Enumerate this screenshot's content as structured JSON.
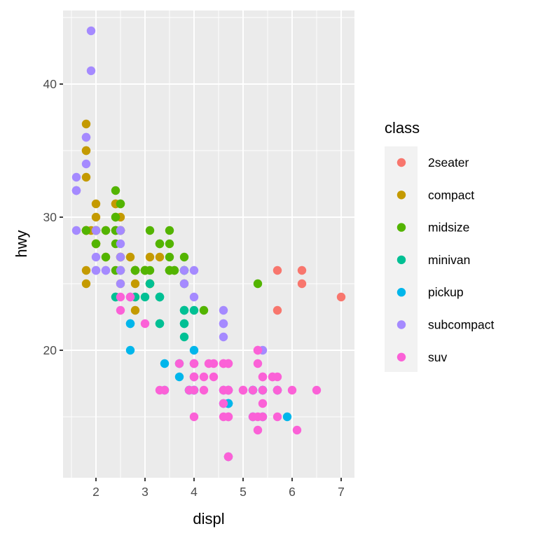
{
  "chart_data": {
    "type": "scatter",
    "title": "",
    "xlabel": "displ",
    "ylabel": "hwy",
    "xlim": [
      1.44,
      7.16
    ],
    "ylim": [
      10.4,
      45.6
    ],
    "x_ticks": [
      2,
      3,
      4,
      5,
      6,
      7
    ],
    "y_ticks": [
      20,
      30,
      40
    ],
    "grid": true,
    "legend": {
      "title": "class",
      "position": "right",
      "entries": [
        {
          "label": "2seater",
          "color": "#F8766D"
        },
        {
          "label": "compact",
          "color": "#C49A00"
        },
        {
          "label": "midsize",
          "color": "#53B400"
        },
        {
          "label": "minivan",
          "color": "#00C094"
        },
        {
          "label": "pickup",
          "color": "#00B6EB"
        },
        {
          "label": "subcompact",
          "color": "#A58AFF"
        },
        {
          "label": "suv",
          "color": "#FB61D7"
        }
      ]
    },
    "series": [
      {
        "name": "2seater",
        "points": [
          [
            5.7,
            26
          ],
          [
            5.7,
            23
          ],
          [
            6.2,
            26
          ],
          [
            6.2,
            25
          ],
          [
            7.0,
            24
          ]
        ]
      },
      {
        "name": "compact",
        "points": [
          [
            1.8,
            29
          ],
          [
            1.8,
            29
          ],
          [
            2.0,
            31
          ],
          [
            2.0,
            30
          ],
          [
            2.8,
            26
          ],
          [
            2.8,
            26
          ],
          [
            3.1,
            27
          ],
          [
            1.8,
            26
          ],
          [
            1.8,
            25
          ],
          [
            2.0,
            28
          ],
          [
            2.0,
            28
          ],
          [
            2.8,
            26
          ],
          [
            2.8,
            25
          ],
          [
            3.1,
            25
          ],
          [
            3.1,
            25
          ],
          [
            2.2,
            27
          ],
          [
            2.2,
            29
          ],
          [
            2.4,
            31
          ],
          [
            2.4,
            31
          ],
          [
            3.0,
            26
          ],
          [
            3.0,
            26
          ],
          [
            3.3,
            27
          ],
          [
            1.8,
            33
          ],
          [
            1.8,
            35
          ],
          [
            1.8,
            37
          ],
          [
            1.8,
            35
          ],
          [
            2.0,
            29
          ],
          [
            2.0,
            29
          ],
          [
            2.0,
            29
          ],
          [
            2.0,
            29
          ],
          [
            2.8,
            23
          ],
          [
            2.8,
            24
          ],
          [
            2.5,
            29
          ],
          [
            2.5,
            29
          ],
          [
            2.5,
            27
          ],
          [
            2.5,
            27
          ],
          [
            2.5,
            25
          ],
          [
            2.5,
            26
          ],
          [
            1.9,
            29
          ],
          [
            2.0,
            28
          ],
          [
            2.0,
            29
          ],
          [
            2.5,
            29
          ],
          [
            2.5,
            30
          ],
          [
            2.7,
            27
          ],
          [
            2.5,
            29
          ],
          [
            1.8,
            29
          ],
          [
            1.8,
            29
          ]
        ]
      },
      {
        "name": "midsize",
        "points": [
          [
            2.8,
            26
          ],
          [
            3.1,
            26
          ],
          [
            4.2,
            23
          ],
          [
            2.4,
            30
          ],
          [
            2.4,
            32
          ],
          [
            3.1,
            29
          ],
          [
            3.5,
            26
          ],
          [
            3.6,
            26
          ],
          [
            2.4,
            30
          ],
          [
            3.0,
            26
          ],
          [
            3.3,
            28
          ],
          [
            3.3,
            28
          ],
          [
            2.5,
            31
          ],
          [
            2.5,
            31
          ],
          [
            3.5,
            27
          ],
          [
            3.5,
            26
          ],
          [
            3.0,
            26
          ],
          [
            3.5,
            26
          ],
          [
            2.4,
            29
          ],
          [
            2.4,
            29
          ],
          [
            2.4,
            28
          ],
          [
            2.4,
            29
          ],
          [
            3.5,
            28
          ],
          [
            3.5,
            29
          ],
          [
            5.3,
            25
          ],
          [
            1.8,
            29
          ],
          [
            1.8,
            29
          ],
          [
            2.0,
            28
          ],
          [
            2.0,
            29
          ],
          [
            2.8,
            26
          ],
          [
            2.8,
            26
          ],
          [
            3.6,
            26
          ],
          [
            3.8,
            26
          ],
          [
            2.2,
            27
          ],
          [
            2.2,
            29
          ],
          [
            2.4,
            26
          ],
          [
            3.0,
            26
          ],
          [
            3.5,
            26
          ],
          [
            2.5,
            26
          ],
          [
            2.5,
            29
          ],
          [
            2.8,
            26
          ],
          [
            3.1,
            25
          ],
          [
            3.8,
            25
          ],
          [
            3.8,
            27
          ]
        ]
      },
      {
        "name": "minivan",
        "points": [
          [
            2.4,
            24
          ],
          [
            3.0,
            24
          ],
          [
            3.3,
            22
          ],
          [
            3.3,
            22
          ],
          [
            3.3,
            24
          ],
          [
            3.3,
            24
          ],
          [
            3.3,
            24
          ],
          [
            3.8,
            22
          ],
          [
            3.8,
            21
          ],
          [
            3.8,
            23
          ],
          [
            3.8,
            23
          ],
          [
            4.0,
            23
          ],
          [
            2.4,
            24
          ],
          [
            2.8,
            24
          ],
          [
            3.1,
            25
          ],
          [
            3.8,
            26
          ],
          [
            3.8,
            22
          ]
        ]
      },
      {
        "name": "pickup",
        "points": [
          [
            3.7,
            18
          ],
          [
            3.7,
            19
          ],
          [
            3.9,
            17
          ],
          [
            3.9,
            17
          ],
          [
            4.7,
            16
          ],
          [
            4.7,
            16
          ],
          [
            4.7,
            12
          ],
          [
            5.2,
            17
          ],
          [
            5.2,
            17
          ],
          [
            5.7,
            17
          ],
          [
            5.9,
            15
          ],
          [
            4.7,
            17
          ],
          [
            4.7,
            16
          ],
          [
            4.7,
            17
          ],
          [
            5.2,
            15
          ],
          [
            5.7,
            17
          ],
          [
            2.7,
            20
          ],
          [
            2.7,
            22
          ],
          [
            3.4,
            17
          ],
          [
            3.4,
            19
          ],
          [
            4.0,
            19
          ],
          [
            4.0,
            20
          ],
          [
            4.7,
            17
          ],
          [
            4.7,
            16
          ],
          [
            5.4,
            15
          ],
          [
            5.4,
            17
          ],
          [
            2.7,
            22
          ],
          [
            4.0,
            17
          ],
          [
            4.0,
            17
          ],
          [
            4.0,
            18
          ],
          [
            4.6,
            17
          ],
          [
            4.6,
            16
          ],
          [
            5.4,
            17
          ]
        ]
      },
      {
        "name": "subcompact",
        "points": [
          [
            1.6,
            33
          ],
          [
            1.6,
            32
          ],
          [
            1.6,
            32
          ],
          [
            1.6,
            29
          ],
          [
            1.6,
            32
          ],
          [
            1.8,
            34
          ],
          [
            1.8,
            36
          ],
          [
            1.8,
            36
          ],
          [
            2.0,
            29
          ],
          [
            2.0,
            26
          ],
          [
            2.0,
            27
          ],
          [
            2.2,
            26
          ],
          [
            2.5,
            26
          ],
          [
            1.9,
            44
          ],
          [
            1.9,
            41
          ],
          [
            2.0,
            29
          ],
          [
            2.0,
            26
          ],
          [
            2.5,
            28
          ],
          [
            2.5,
            29
          ],
          [
            2.5,
            29
          ],
          [
            3.8,
            26
          ],
          [
            3.8,
            25
          ],
          [
            4.0,
            26
          ],
          [
            4.0,
            24
          ],
          [
            4.6,
            21
          ],
          [
            4.6,
            22
          ],
          [
            4.6,
            23
          ],
          [
            4.6,
            22
          ],
          [
            5.4,
            20
          ],
          [
            2.7,
            24
          ],
          [
            2.7,
            24
          ],
          [
            2.5,
            27
          ],
          [
            2.5,
            26
          ],
          [
            2.2,
            26
          ],
          [
            2.5,
            25
          ]
        ]
      },
      {
        "name": "suv",
        "points": [
          [
            5.3,
            20
          ],
          [
            5.3,
            15
          ],
          [
            5.3,
            20
          ],
          [
            5.7,
            17
          ],
          [
            6.0,
            17
          ],
          [
            5.7,
            15
          ],
          [
            6.5,
            17
          ],
          [
            3.7,
            19
          ],
          [
            3.9,
            17
          ],
          [
            4.7,
            17
          ],
          [
            4.7,
            17
          ],
          [
            5.2,
            15
          ],
          [
            5.2,
            17
          ],
          [
            5.7,
            17
          ],
          [
            4.0,
            19
          ],
          [
            4.0,
            15
          ],
          [
            4.6,
            17
          ],
          [
            5.0,
            17
          ],
          [
            4.2,
            17
          ],
          [
            4.2,
            18
          ],
          [
            4.6,
            17
          ],
          [
            4.6,
            19
          ],
          [
            5.4,
            17
          ],
          [
            5.4,
            18
          ],
          [
            5.4,
            15
          ],
          [
            4.0,
            18
          ],
          [
            4.0,
            17
          ],
          [
            4.6,
            19
          ],
          [
            5.0,
            17
          ],
          [
            2.5,
            23
          ],
          [
            2.5,
            24
          ],
          [
            4.7,
            19
          ],
          [
            4.7,
            15
          ],
          [
            4.7,
            17
          ],
          [
            4.7,
            19
          ],
          [
            5.6,
            18
          ],
          [
            4.7,
            12
          ],
          [
            4.4,
            19
          ],
          [
            5.4,
            18
          ],
          [
            3.3,
            17
          ],
          [
            4.0,
            19
          ],
          [
            5.3,
            19
          ],
          [
            5.3,
            14
          ],
          [
            6.1,
            14
          ],
          [
            4.7,
            12
          ],
          [
            5.7,
            18
          ],
          [
            4.7,
            15
          ],
          [
            2.7,
            24
          ],
          [
            4.0,
            18
          ],
          [
            3.0,
            22
          ],
          [
            4.3,
            19
          ],
          [
            4.7,
            17
          ],
          [
            5.4,
            16
          ],
          [
            4.6,
            15
          ],
          [
            4.6,
            16
          ],
          [
            3.4,
            17
          ],
          [
            4.4,
            18
          ],
          [
            5.6,
            18
          ]
        ]
      }
    ]
  }
}
